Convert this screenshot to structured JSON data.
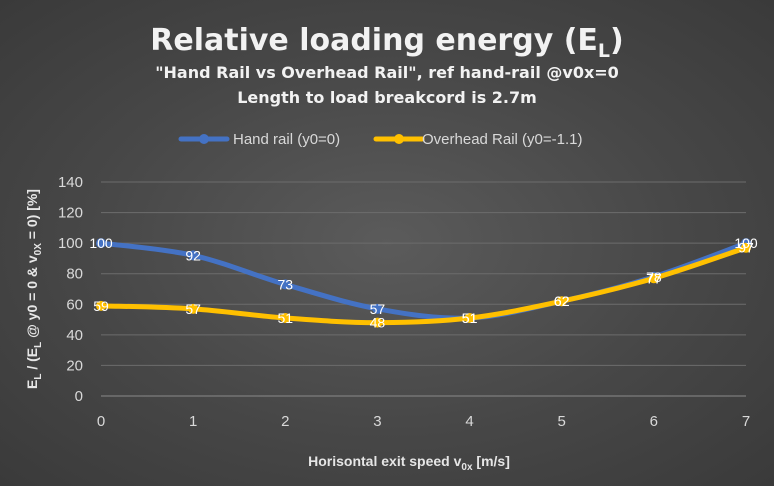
{
  "chart_data": {
    "type": "line",
    "title": "Relative loading energy (E",
    "title_sub": "L",
    "title_end": ")",
    "subtitle_line1": "\"Hand Rail vs Overhead Rail\", ref hand-rail @v0x=0",
    "subtitle_line2": "Length to load breakcord is 2.7m",
    "xlabel_main": "Horisontal exit speed v",
    "xlabel_sub": "0x",
    "xlabel_end": " [m/s]",
    "ylabel_parts": {
      "p1": "E",
      "p1sub": "L",
      "p2": " / (E",
      "p2sub": "L",
      "p3": " @ y0 = 0 & v",
      "p3sub": "0X",
      "p4": " = 0) [%]"
    },
    "x": [
      0,
      1,
      2,
      3,
      4,
      5,
      6,
      7
    ],
    "x_tick_labels": [
      "0",
      "1",
      "2",
      "3",
      "4",
      "5",
      "6",
      "7"
    ],
    "y_tick_labels": [
      "0",
      "20",
      "40",
      "60",
      "80",
      "100",
      "120",
      "140"
    ],
    "xlim": [
      0,
      7
    ],
    "ylim": [
      0,
      140
    ],
    "grid": true,
    "legend_position": "top",
    "series": [
      {
        "name": "Hand rail (y0=0)",
        "color": "#4472c4",
        "values": [
          100,
          92,
          73,
          57,
          51,
          62,
          78,
          100
        ],
        "labels": [
          "100",
          "92",
          "73",
          "57",
          "51",
          "62",
          "78",
          "100"
        ]
      },
      {
        "name": "Overhead Rail (y0=-1.1)",
        "color": "#ffc000",
        "values": [
          59,
          57,
          51,
          48,
          51,
          62,
          77,
          97
        ],
        "labels": [
          "59",
          "57",
          "51",
          "48",
          "51",
          "62",
          "77",
          "97"
        ]
      }
    ]
  }
}
